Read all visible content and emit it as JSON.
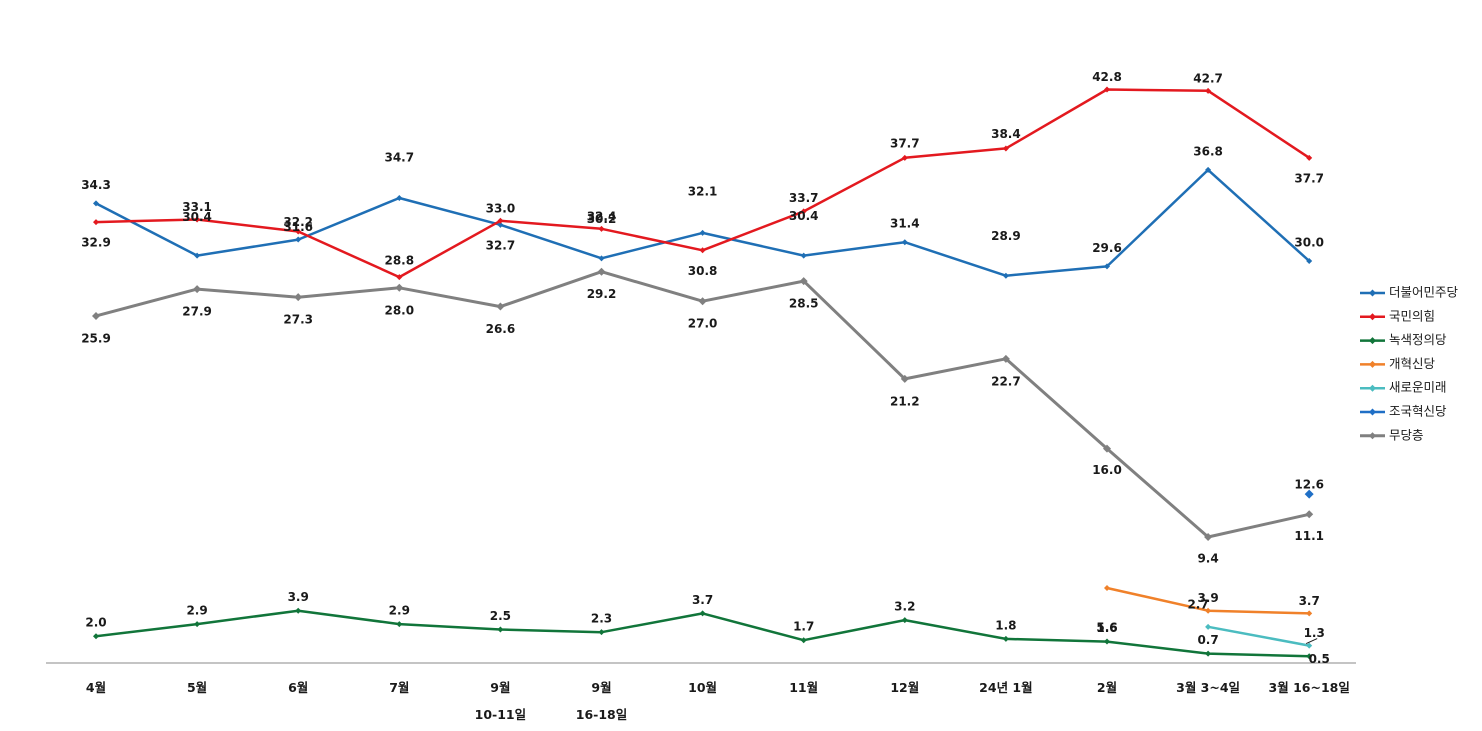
{
  "chart_data": {
    "type": "line",
    "categories": [
      "4월",
      "5월",
      "6월",
      "7월",
      "9월\n10-11일",
      "9월\n16-18일",
      "10월",
      "11월",
      "12월",
      "24년 1월",
      "2월",
      "3월 3~4일",
      "3월 16~18일"
    ],
    "ylim": [
      0,
      45
    ],
    "grid": false,
    "legend_position": "right",
    "series": [
      {
        "name": "더불어민주당",
        "color": "#1f6fb5",
        "values": [
          34.3,
          30.4,
          31.6,
          34.7,
          32.7,
          30.2,
          32.1,
          30.4,
          31.4,
          28.9,
          29.6,
          36.8,
          30.0
        ]
      },
      {
        "name": "국민의힘",
        "color": "#e3191f",
        "values": [
          32.9,
          33.1,
          32.2,
          28.8,
          33.0,
          32.4,
          30.8,
          33.7,
          37.7,
          38.4,
          42.8,
          42.7,
          37.7
        ]
      },
      {
        "name": "녹색정의당",
        "color": "#11753a",
        "values": [
          2.0,
          2.9,
          3.9,
          2.9,
          2.5,
          2.3,
          3.7,
          1.7,
          3.2,
          1.8,
          1.6,
          0.7,
          0.5
        ]
      },
      {
        "name": "개혁신당",
        "color": "#f0812a",
        "values": [
          null,
          null,
          null,
          null,
          null,
          null,
          null,
          null,
          null,
          null,
          5.6,
          3.9,
          3.7
        ]
      },
      {
        "name": "새로운미래",
        "color": "#4bbcc0",
        "values": [
          null,
          null,
          null,
          null,
          null,
          null,
          null,
          null,
          null,
          null,
          null,
          2.7,
          1.3
        ]
      },
      {
        "name": "조국혁신당",
        "color": "#1f6fc6",
        "values": [
          null,
          null,
          null,
          null,
          null,
          null,
          null,
          null,
          null,
          null,
          null,
          null,
          12.6
        ]
      },
      {
        "name": "무당층",
        "color": "#808080",
        "values": [
          25.9,
          27.9,
          27.3,
          28.0,
          26.6,
          29.2,
          27.0,
          28.5,
          21.2,
          22.7,
          16.0,
          9.4,
          11.1
        ]
      }
    ]
  }
}
